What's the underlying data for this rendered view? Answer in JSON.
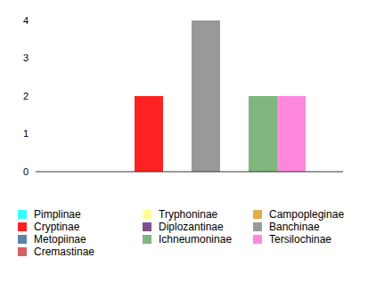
{
  "chart_data": {
    "type": "bar",
    "categories": [
      null
    ],
    "series": [
      {
        "name": "Pimplinae",
        "color": "#33ffff",
        "values": [
          0
        ]
      },
      {
        "name": "Tryphoninae",
        "color": "#ffff99",
        "values": [
          0
        ]
      },
      {
        "name": "Campopleginae",
        "color": "#e8a94f",
        "values": [
          0
        ]
      },
      {
        "name": "Cryptinae",
        "color": "#ff2222",
        "values": [
          2
        ]
      },
      {
        "name": "Diplozantinae",
        "color": "#7f4f8f",
        "values": [
          0
        ]
      },
      {
        "name": "Banchinae",
        "color": "#999999",
        "values": [
          4
        ]
      },
      {
        "name": "Metopiinae",
        "color": "#5f82a8",
        "values": [
          0
        ]
      },
      {
        "name": "Ichneumoninae",
        "color": "#7fb77f",
        "values": [
          2
        ]
      },
      {
        "name": "Tersilochinae",
        "color": "#ff88dd",
        "values": [
          2
        ]
      },
      {
        "name": "Cremastinae",
        "color": "#d46060",
        "values": [
          0
        ]
      }
    ],
    "ylim": [
      0,
      4
    ],
    "yticks": [
      0,
      1,
      2,
      3,
      4
    ],
    "grid": false,
    "legend": "bottom",
    "tick_labels": "y"
  }
}
